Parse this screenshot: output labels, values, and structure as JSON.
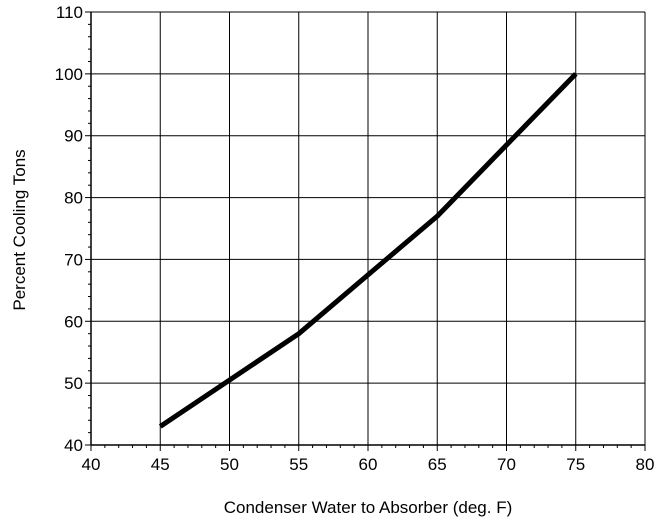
{
  "chart_data": {
    "type": "line",
    "title": "",
    "xlabel": "Condenser Water to Absorber (deg. F)",
    "ylabel": "Percent Cooling Tons",
    "xlim": [
      40,
      80
    ],
    "ylim": [
      40,
      110
    ],
    "x_ticks": [
      "40",
      "45",
      "50",
      "55",
      "60",
      "65",
      "70",
      "75",
      "80"
    ],
    "y_ticks": [
      "40",
      "50",
      "60",
      "70",
      "80",
      "90",
      "100",
      "110"
    ],
    "grid": true,
    "legend": "none",
    "series": [
      {
        "color": "#000000",
        "x": [
          45,
          50,
          55,
          60,
          65,
          70,
          75
        ],
        "y": [
          43,
          50.5,
          58,
          67.5,
          77,
          88.5,
          100
        ]
      }
    ]
  }
}
